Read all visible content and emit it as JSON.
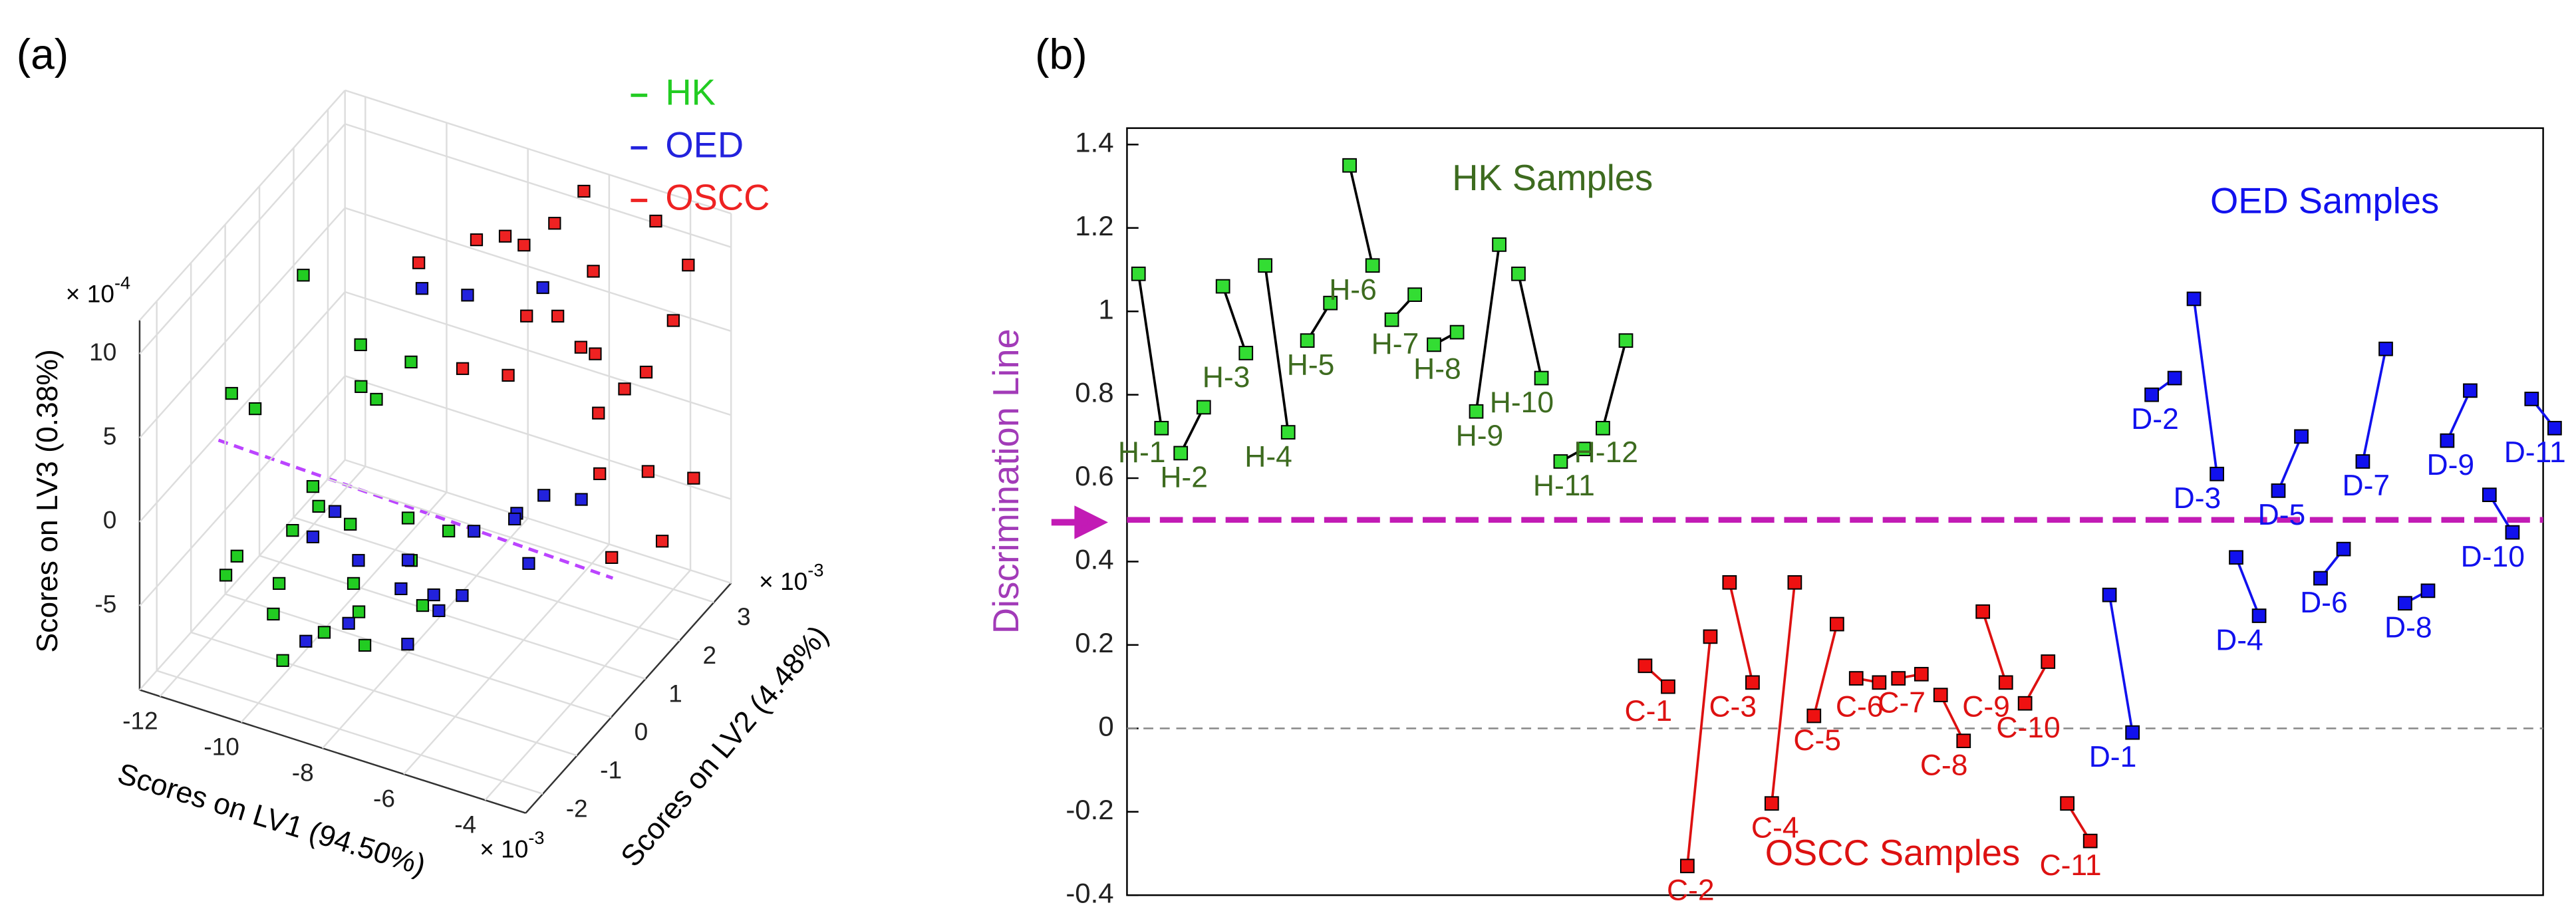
{
  "chart_data": [
    {
      "type": "scatter3d",
      "panel_label": "(a)",
      "xlabel": "Scores on LV1 (94.50%)",
      "ylabel": "Scores on LV2 (4.48%)",
      "zlabel": "Scores on LV3 (0.38%)",
      "xscale_label": {
        "base": "× 10",
        "exponent": "-3"
      },
      "yscale_label": {
        "base": "× 10",
        "exponent": "-3"
      },
      "zscale_label": {
        "base": "× 10",
        "exponent": "-4"
      },
      "xlim": [
        -12.5,
        -3
      ],
      "ylim": [
        -2.5,
        3.5
      ],
      "zlim": [
        -10,
        12
      ],
      "xticks": [
        -12,
        -10,
        -8,
        -6,
        -4
      ],
      "yticks": [
        -2,
        -1,
        0,
        1,
        2,
        3
      ],
      "zticks": [
        -5,
        0,
        5,
        10
      ],
      "series": [
        {
          "name": "HK",
          "color": "#22cc22",
          "points": [
            [
              -11.5,
              -1,
              5
            ],
            [
              -11,
              0.5,
              9
            ],
            [
              -10.5,
              -1.5,
              6
            ],
            [
              -10,
              -1,
              -2
            ],
            [
              -10.8,
              -2,
              -3
            ],
            [
              -11.2,
              -1.2,
              -4
            ],
            [
              -10.2,
              0,
              -3
            ],
            [
              -9.5,
              -1,
              1
            ],
            [
              -9,
              -0.5,
              -2
            ],
            [
              -9.8,
              -1.8,
              -5
            ],
            [
              -10.5,
              -0.8,
              -6
            ],
            [
              -9.2,
              0.5,
              3
            ],
            [
              -8.5,
              -1,
              -4
            ],
            [
              -8.8,
              -1.5,
              -6
            ],
            [
              -8,
              0,
              -2
            ],
            [
              -9.4,
              -2,
              -7
            ],
            [
              -8.2,
              -1.2,
              -5
            ],
            [
              -7.5,
              -0.5,
              -3
            ],
            [
              -7.8,
              -1.5,
              -6
            ],
            [
              -7,
              0,
              -2
            ],
            [
              -8.6,
              0.8,
              5
            ],
            [
              -10,
              1,
              2
            ],
            [
              -6.8,
              -1,
              -4
            ],
            [
              -9,
              -0.2,
              8
            ]
          ]
        },
        {
          "name": "OED",
          "color": "#2222dd",
          "points": [
            [
              -9.8,
              0,
              -3
            ],
            [
              -9.5,
              -1,
              -2
            ],
            [
              -8.8,
              -0.5,
              -4
            ],
            [
              -8.2,
              -1.5,
              -5
            ],
            [
              -7.5,
              -0.8,
              -4
            ],
            [
              -7,
              -1.2,
              -6
            ],
            [
              -6.8,
              0.5,
              -3
            ],
            [
              -6.5,
              -0.2,
              -5
            ],
            [
              -6,
              0.8,
              -2
            ],
            [
              -5.5,
              1,
              -1
            ],
            [
              -5.2,
              0.2,
              -3
            ],
            [
              -7.8,
              1.5,
              8
            ],
            [
              -8.5,
              1,
              9
            ],
            [
              -6.2,
              1.8,
              9
            ],
            [
              -5,
              1.5,
              -2
            ],
            [
              -7.2,
              -0.2,
              -5.5
            ],
            [
              -8,
              0,
              -4.5
            ],
            [
              -9,
              -1.8,
              -6
            ],
            [
              -6.4,
              -1,
              -4
            ],
            [
              -5.8,
              0.5,
              -1.5
            ]
          ]
        },
        {
          "name": "OSCC",
          "color": "#ee2222",
          "points": [
            [
              -9,
              1.5,
              9
            ],
            [
              -8,
              2,
              10
            ],
            [
              -7,
              2.2,
              10
            ],
            [
              -6.5,
              2.5,
              11
            ],
            [
              -6,
              2,
              7
            ],
            [
              -7.5,
              1,
              5
            ],
            [
              -6.8,
              1.5,
              4
            ],
            [
              -5.5,
              2.5,
              4
            ],
            [
              -5,
              2,
              2
            ],
            [
              -4.5,
              2.8,
              3
            ],
            [
              -4,
              3,
              6
            ],
            [
              -3.8,
              3.2,
              9
            ],
            [
              -5.2,
              3,
              1
            ],
            [
              -4.8,
              1.8,
              -1
            ],
            [
              -4.2,
              2.5,
              -2
            ],
            [
              -3.5,
              3,
              -3
            ],
            [
              -6.2,
              3,
              12
            ],
            [
              -5.8,
              2.8,
              8
            ],
            [
              -7.8,
              2.6,
              9
            ],
            [
              -4,
              1.2,
              -4
            ],
            [
              -6.6,
              1.8,
              7
            ],
            [
              -5.6,
              2.2,
              5
            ],
            [
              -3.6,
              2.2,
              -5
            ],
            [
              -4.6,
              3.2,
              11
            ]
          ]
        }
      ]
    },
    {
      "type": "paired",
      "panel_label": "(b)",
      "ylabel": "Discrimination Line",
      "ylim": [
        -0.4,
        1.4
      ],
      "yticks": [
        -0.4,
        -0.2,
        0,
        0.2,
        0.4,
        0.6,
        0.8,
        1,
        1.2,
        1.4
      ],
      "yticklabels": [
        "-0.4",
        "-0.2",
        "0",
        "0.2",
        "0.4",
        "0.6",
        "0.8",
        "1",
        "1.2",
        "1.4"
      ],
      "threshold": 0.5,
      "reference": 0,
      "series": [
        {
          "name": "HK Samples",
          "color": "#33dd33",
          "line_color": "#000000",
          "text_color": "#3d6b1f",
          "labels": [
            "H-1",
            "H-2",
            "H-3",
            "H-4",
            "H-5",
            "H-6",
            "H-7",
            "H-8",
            "H-9",
            "H-10",
            "H-11",
            "H-12"
          ],
          "values": [
            [
              1.09,
              0.72
            ],
            [
              0.66,
              0.77
            ],
            [
              1.06,
              0.9
            ],
            [
              1.11,
              0.71
            ],
            [
              0.93,
              1.02
            ],
            [
              1.35,
              1.11
            ],
            [
              0.98,
              1.04
            ],
            [
              0.92,
              0.95
            ],
            [
              0.76,
              1.16
            ],
            [
              1.09,
              0.84
            ],
            [
              0.64,
              0.67
            ],
            [
              0.72,
              0.93
            ]
          ]
        },
        {
          "name": "OSCC Samples",
          "color": "#ee1111",
          "line_color": "#dd1111",
          "text_color": "#dd1111",
          "labels": [
            "C-1",
            "C-2",
            "C-3",
            "C-4",
            "C-5",
            "C-6",
            "C-7",
            "C-8",
            "C-9",
            "C-10",
            "C-11"
          ],
          "values": [
            [
              0.15,
              0.1
            ],
            [
              -0.33,
              0.22
            ],
            [
              0.35,
              0.11
            ],
            [
              -0.18,
              0.35
            ],
            [
              0.03,
              0.25
            ],
            [
              0.12,
              0.11
            ],
            [
              0.12,
              0.13
            ],
            [
              0.08,
              -0.03
            ],
            [
              0.28,
              0.11
            ],
            [
              0.06,
              0.16
            ],
            [
              -0.18,
              -0.27
            ]
          ]
        },
        {
          "name": "OED Samples",
          "color": "#1111ee",
          "line_color": "#1111ee",
          "text_color": "#1111ee",
          "labels": [
            "D-1",
            "D-2",
            "D-3",
            "D-4",
            "D-5",
            "D-6",
            "D-7",
            "D-8",
            "D-9",
            "D-10",
            "D-11"
          ],
          "values": [
            [
              0.32,
              -0.01
            ],
            [
              0.8,
              0.84
            ],
            [
              1.03,
              0.61
            ],
            [
              0.41,
              0.27
            ],
            [
              0.57,
              0.7
            ],
            [
              0.36,
              0.43
            ],
            [
              0.64,
              0.91
            ],
            [
              0.3,
              0.33
            ],
            [
              0.69,
              0.81
            ],
            [
              0.56,
              0.47
            ],
            [
              0.79,
              0.72
            ]
          ]
        }
      ]
    }
  ]
}
